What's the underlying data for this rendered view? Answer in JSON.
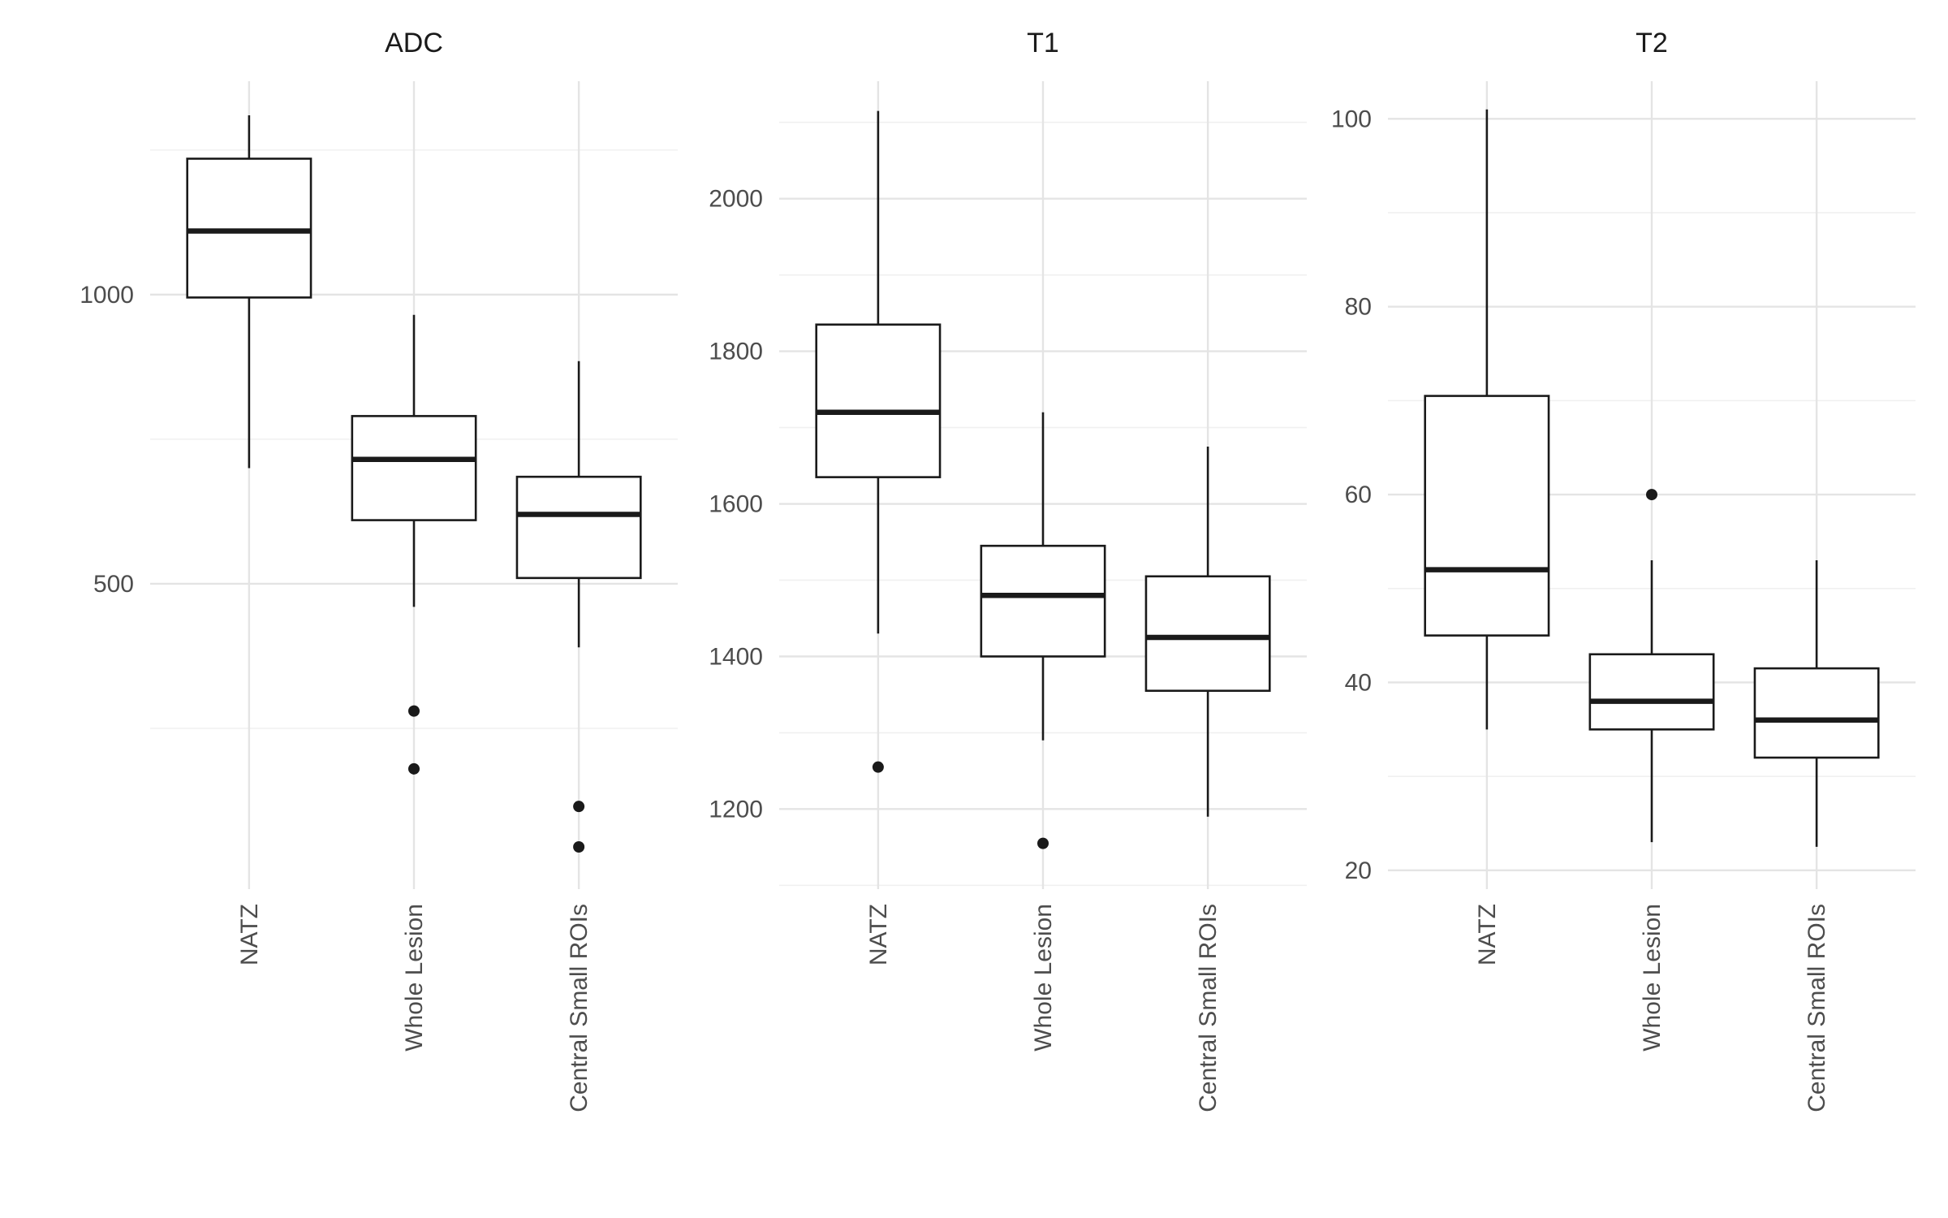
{
  "figure": {
    "background": "#ffffff",
    "description": "Faceted boxplot figure with three panels"
  },
  "chart_data": {
    "type": "boxplot",
    "categories": [
      "NATZ",
      "Whole Lesion",
      "Central Small ROIs"
    ],
    "legend": "none",
    "grid": "on",
    "panels": [
      {
        "title": "ADC",
        "y_ticks": [
          500,
          1000
        ],
        "y_minor_ticks": [
          250,
          750,
          1250
        ],
        "y_domain": [
          -28,
          1369
        ],
        "boxes": [
          {
            "category": "NATZ",
            "whisker_low": 700,
            "q1": 995,
            "median": 1110,
            "q3": 1235,
            "whisker_high": 1310,
            "outliers": []
          },
          {
            "category": "Whole Lesion",
            "whisker_low": 460,
            "q1": 610,
            "median": 715,
            "q3": 790,
            "whisker_high": 965,
            "outliers": [
              280,
              180
            ]
          },
          {
            "category": "Central Small ROIs",
            "whisker_low": 390,
            "q1": 510,
            "median": 620,
            "q3": 685,
            "whisker_high": 885,
            "outliers": [
              115,
              45
            ]
          }
        ]
      },
      {
        "title": "T1",
        "y_ticks": [
          1200,
          1400,
          1600,
          1800,
          2000
        ],
        "y_minor_ticks": [
          1100,
          1300,
          1500,
          1700,
          1900,
          2100
        ],
        "y_domain": [
          1095,
          2154
        ],
        "boxes": [
          {
            "category": "NATZ",
            "whisker_low": 1430,
            "q1": 1635,
            "median": 1720,
            "q3": 1835,
            "whisker_high": 2115,
            "outliers": [
              1255
            ]
          },
          {
            "category": "Whole Lesion",
            "whisker_low": 1290,
            "q1": 1400,
            "median": 1480,
            "q3": 1545,
            "whisker_high": 1720,
            "outliers": [
              1155
            ]
          },
          {
            "category": "Central Small ROIs",
            "whisker_low": 1190,
            "q1": 1355,
            "median": 1425,
            "q3": 1505,
            "whisker_high": 1675,
            "outliers": []
          }
        ]
      },
      {
        "title": "T2",
        "y_ticks": [
          20,
          40,
          60,
          80,
          100
        ],
        "y_minor_ticks": [
          30,
          50,
          70,
          90
        ],
        "y_domain": [
          18,
          104
        ],
        "boxes": [
          {
            "category": "NATZ",
            "whisker_low": 35,
            "q1": 45,
            "median": 52,
            "q3": 70.5,
            "whisker_high": 101,
            "outliers": []
          },
          {
            "category": "Whole Lesion",
            "whisker_low": 23,
            "q1": 35,
            "median": 38,
            "q3": 43,
            "whisker_high": 53,
            "outliers": [
              60
            ]
          },
          {
            "category": "Central Small ROIs",
            "whisker_low": 22.5,
            "q1": 32,
            "median": 36,
            "q3": 41.5,
            "whisker_high": 53,
            "outliers": []
          }
        ]
      }
    ],
    "style": {
      "box_color": "#1a1a1a",
      "box_fill": "#ffffff",
      "grid_major_color": "#e4e4e4",
      "grid_minor_color": "#f0f0f0",
      "tick_label_color": "#4d4d4d",
      "title_color": "#1a1a1a",
      "background": "#ffffff"
    }
  }
}
